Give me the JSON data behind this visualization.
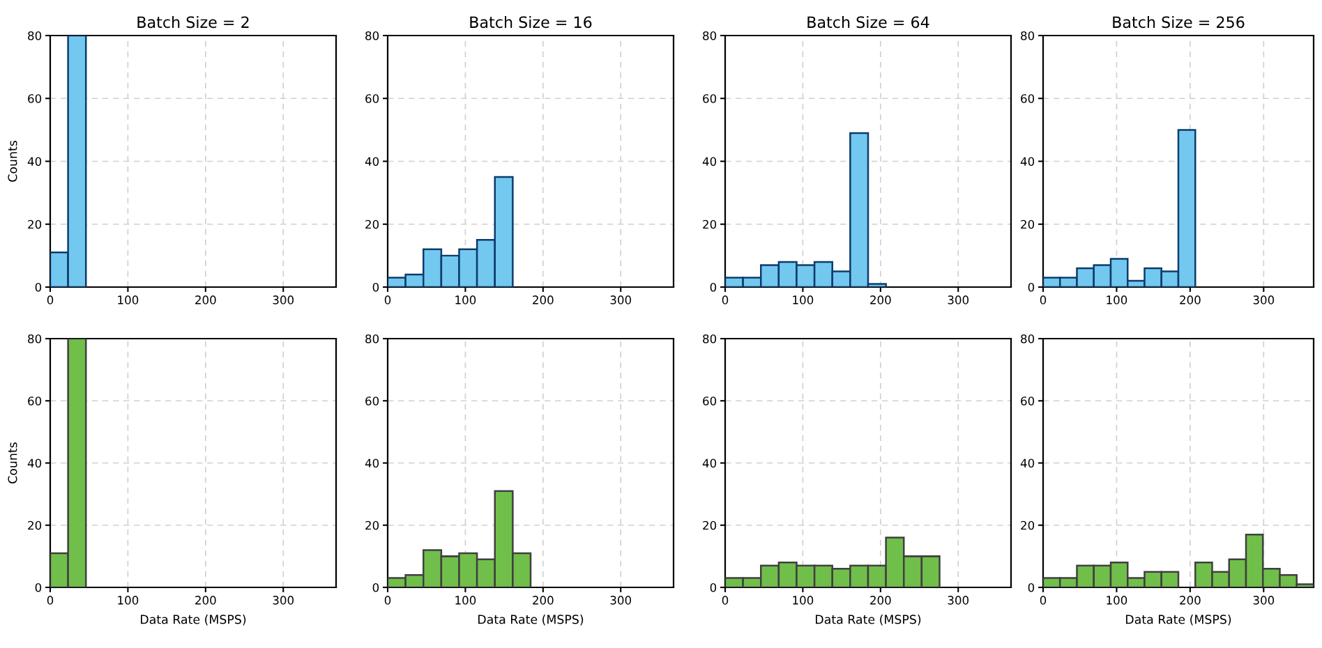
{
  "chart_data": [
    {
      "type": "histogram",
      "title": "Batch Size = 2",
      "ylabel": "Counts",
      "bins": [
        0,
        23,
        46,
        69,
        92,
        115,
        138,
        161,
        184,
        207,
        230,
        253,
        276,
        299,
        322,
        345,
        368
      ],
      "values": [
        11,
        80,
        0,
        0,
        0,
        0,
        0,
        0,
        0,
        0,
        0,
        0,
        0,
        0,
        0,
        0
      ],
      "color": "#73c8f0",
      "xlim": [
        0,
        368
      ],
      "ylim": [
        0,
        80
      ],
      "xticks": [
        0,
        100,
        200,
        300
      ],
      "yticks": [
        0,
        20,
        40,
        60,
        80
      ],
      "grid": true
    },
    {
      "type": "histogram",
      "title": "Batch Size = 16",
      "bins": [
        0,
        23,
        46,
        69,
        92,
        115,
        138,
        161,
        184,
        207,
        230,
        253,
        276,
        299,
        322,
        345,
        368
      ],
      "values": [
        3,
        4,
        12,
        10,
        12,
        15,
        35,
        0,
        0,
        0,
        0,
        0,
        0,
        0,
        0,
        0
      ],
      "color": "#73c8f0",
      "xlim": [
        0,
        368
      ],
      "ylim": [
        0,
        80
      ],
      "xticks": [
        0,
        100,
        200,
        300
      ],
      "yticks": [
        0,
        20,
        40,
        60,
        80
      ],
      "grid": true
    },
    {
      "type": "histogram",
      "title": "Batch Size = 64",
      "bins": [
        0,
        23,
        46,
        69,
        92,
        115,
        138,
        161,
        184,
        207,
        230,
        253,
        276,
        299,
        322,
        345,
        368
      ],
      "values": [
        3,
        3,
        7,
        8,
        7,
        8,
        5,
        49,
        1,
        0,
        0,
        0,
        0,
        0,
        0,
        0
      ],
      "color": "#73c8f0",
      "xlim": [
        0,
        368
      ],
      "ylim": [
        0,
        80
      ],
      "xticks": [
        0,
        100,
        200,
        300
      ],
      "yticks": [
        0,
        20,
        40,
        60,
        80
      ],
      "grid": true
    },
    {
      "type": "histogram",
      "title": "Batch Size = 256",
      "bins": [
        0,
        23,
        46,
        69,
        92,
        115,
        138,
        161,
        184,
        207,
        230,
        253,
        276,
        299,
        322,
        345,
        368
      ],
      "values": [
        3,
        3,
        6,
        7,
        9,
        2,
        6,
        5,
        50,
        0,
        0,
        0,
        0,
        0,
        0,
        0
      ],
      "color": "#73c8f0",
      "xlim": [
        0,
        368
      ],
      "ylim": [
        0,
        80
      ],
      "xticks": [
        0,
        100,
        200,
        300
      ],
      "yticks": [
        0,
        20,
        40,
        60,
        80
      ],
      "grid": true
    },
    {
      "type": "histogram",
      "xlabel": "Data Rate (MSPS)",
      "ylabel": "Counts",
      "bins": [
        0,
        23,
        46,
        69,
        92,
        115,
        138,
        161,
        184,
        207,
        230,
        253,
        276,
        299,
        322,
        345,
        368
      ],
      "values": [
        11,
        80,
        0,
        0,
        0,
        0,
        0,
        0,
        0,
        0,
        0,
        0,
        0,
        0,
        0,
        0
      ],
      "color": "#70bf4a",
      "xlim": [
        0,
        368
      ],
      "ylim": [
        0,
        80
      ],
      "xticks": [
        0,
        100,
        200,
        300
      ],
      "yticks": [
        0,
        20,
        40,
        60,
        80
      ],
      "grid": true
    },
    {
      "type": "histogram",
      "xlabel": "Data Rate (MSPS)",
      "bins": [
        0,
        23,
        46,
        69,
        92,
        115,
        138,
        161,
        184,
        207,
        230,
        253,
        276,
        299,
        322,
        345,
        368
      ],
      "values": [
        3,
        4,
        12,
        10,
        11,
        9,
        31,
        11,
        0,
        0,
        0,
        0,
        0,
        0,
        0,
        0
      ],
      "color": "#70bf4a",
      "xlim": [
        0,
        368
      ],
      "ylim": [
        0,
        80
      ],
      "xticks": [
        0,
        100,
        200,
        300
      ],
      "yticks": [
        0,
        20,
        40,
        60,
        80
      ],
      "grid": true
    },
    {
      "type": "histogram",
      "xlabel": "Data Rate (MSPS)",
      "bins": [
        0,
        23,
        46,
        69,
        92,
        115,
        138,
        161,
        184,
        207,
        230,
        253,
        276,
        299,
        322,
        345,
        368
      ],
      "values": [
        3,
        3,
        7,
        8,
        7,
        7,
        6,
        7,
        7,
        16,
        10,
        10,
        0,
        0,
        0,
        0
      ],
      "color": "#70bf4a",
      "xlim": [
        0,
        368
      ],
      "ylim": [
        0,
        80
      ],
      "xticks": [
        0,
        100,
        200,
        300
      ],
      "yticks": [
        0,
        20,
        40,
        60,
        80
      ],
      "grid": true
    },
    {
      "type": "histogram",
      "xlabel": "Data Rate (MSPS)",
      "bins": [
        0,
        23,
        46,
        69,
        92,
        115,
        138,
        161,
        184,
        207,
        230,
        253,
        276,
        299,
        322,
        345,
        368
      ],
      "values": [
        3,
        3,
        7,
        7,
        8,
        3,
        5,
        5,
        0,
        8,
        5,
        9,
        17,
        6,
        4,
        1
      ],
      "color": "#70bf4a",
      "xlim": [
        0,
        368
      ],
      "ylim": [
        0,
        80
      ],
      "xticks": [
        0,
        100,
        200,
        300
      ],
      "yticks": [
        0,
        20,
        40,
        60,
        80
      ],
      "grid": true
    }
  ]
}
